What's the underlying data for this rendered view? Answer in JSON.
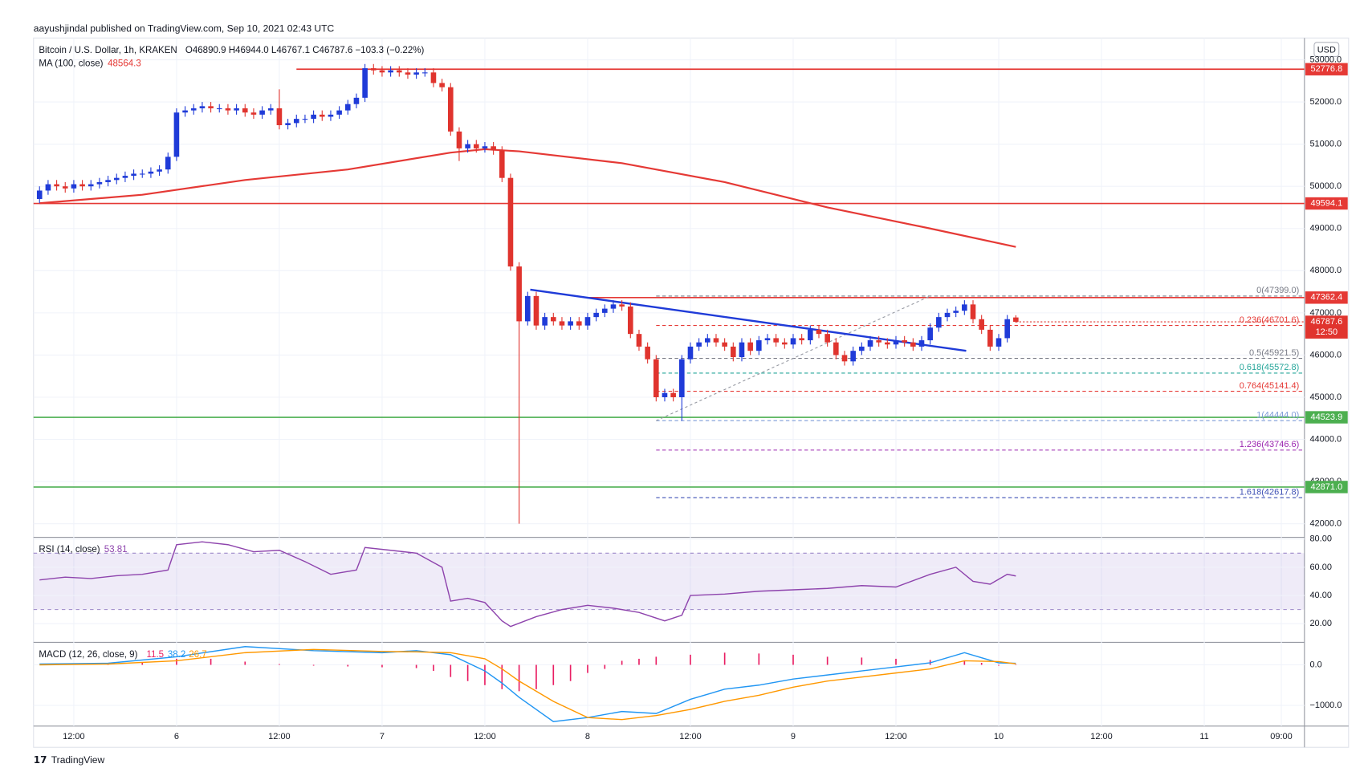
{
  "header": {
    "byline": "aayushjindal published on TradingView.com, Sep 10, 2021 02:43 UTC",
    "symbol": "Bitcoin / U.S. Dollar, 1h, KRAKEN",
    "ohlc": "O46890.9 H46944.0 L46767.1 C46787.6 −103.3 (−0.22%)",
    "currency": "USD",
    "countdown": "12:50",
    "logo": "TradingView"
  },
  "chart_data": {
    "type": "candlestick",
    "up_color": "#1f3bd8",
    "down_color": "#e0342e",
    "grid": true,
    "xlim": [
      7.3,
      155.7
    ],
    "xticks": [
      {
        "value": 12,
        "label": "12:00"
      },
      {
        "value": 24,
        "label": "6"
      },
      {
        "value": 36,
        "label": "12:00"
      },
      {
        "value": 48,
        "label": "7"
      },
      {
        "value": 60,
        "label": "12:00"
      },
      {
        "value": 72,
        "label": "8"
      },
      {
        "value": 84,
        "label": "12:00"
      },
      {
        "value": 96,
        "label": "9"
      },
      {
        "value": 108,
        "label": "12:00"
      },
      {
        "value": 120,
        "label": "10"
      },
      {
        "value": 132,
        "label": "12:00"
      },
      {
        "value": 144,
        "label": "11"
      },
      {
        "value": 153,
        "label": "09:00"
      }
    ],
    "ylim": [
      53517,
      41678
    ],
    "yticks": [
      {
        "value": 53000,
        "label": "53000.0"
      },
      {
        "value": 52000,
        "label": "52000.0"
      },
      {
        "value": 51000,
        "label": "51000.0"
      },
      {
        "value": 50000,
        "label": "50000.0"
      },
      {
        "value": 49000,
        "label": "49000.0"
      },
      {
        "value": 48000,
        "label": "48000.0"
      },
      {
        "value": 47000,
        "label": "47000.0"
      },
      {
        "value": 46000,
        "label": "46000.0"
      },
      {
        "value": 45000,
        "label": "45000.0"
      },
      {
        "value": 44000,
        "label": "44000.0"
      },
      {
        "value": 43000,
        "label": "43000.0"
      },
      {
        "value": 42000,
        "label": "42000.0"
      }
    ],
    "x": [
      8,
      9,
      10,
      11,
      12,
      13,
      14,
      15,
      16,
      17,
      18,
      19,
      20,
      21,
      22,
      23,
      24,
      25,
      26,
      27,
      28,
      29,
      30,
      31,
      32,
      33,
      34,
      35,
      36,
      37,
      38,
      39,
      40,
      41,
      42,
      43,
      44,
      45,
      46,
      47,
      48,
      49,
      50,
      51,
      52,
      53,
      54,
      55,
      56,
      57,
      58,
      59,
      60,
      61,
      62,
      63,
      64,
      65,
      66,
      67,
      68,
      69,
      70,
      71,
      72,
      73,
      74,
      75,
      76,
      77,
      78,
      79,
      80,
      81,
      82,
      83,
      84,
      85,
      86,
      87,
      88,
      89,
      90,
      91,
      92,
      93,
      94,
      95,
      96,
      97,
      98,
      99,
      100,
      101,
      102,
      103,
      104,
      105,
      106,
      107,
      108,
      109,
      110,
      111,
      112,
      113,
      114,
      115,
      116,
      117,
      118,
      119,
      120,
      121,
      122
    ],
    "open": [
      49700,
      49900,
      50050,
      50000,
      49950,
      50050,
      50000,
      50050,
      50100,
      50150,
      50200,
      50250,
      50300,
      50300,
      50350,
      50400,
      50700,
      51750,
      51800,
      51850,
      51900,
      51850,
      51850,
      51800,
      51850,
      51750,
      51700,
      51800,
      51850,
      51450,
      51500,
      51600,
      51600,
      51700,
      51650,
      51700,
      51800,
      51950,
      52100,
      52800,
      52750,
      52700,
      52750,
      52700,
      52650,
      52700,
      52700,
      52450,
      52350,
      51300,
      50900,
      51000,
      50900,
      50950,
      50850,
      50200,
      48100,
      46800,
      47400,
      46700,
      46900,
      46800,
      46700,
      46800,
      46700,
      46900,
      47000,
      47100,
      47200,
      47150,
      46500,
      46200,
      45900,
      45000,
      45100,
      45000,
      45900,
      46200,
      46300,
      46400,
      46300,
      46200,
      45950,
      46300,
      46100,
      46350,
      46400,
      46300,
      46250,
      46400,
      46350,
      46600,
      46500,
      46300,
      46000,
      45850,
      46100,
      46200,
      46350,
      46300,
      46250,
      46350,
      46300,
      46200,
      46350,
      46650,
      46900,
      47000,
      47050,
      47200,
      46850,
      46600,
      46200,
      46400,
      46890.9
    ],
    "high": [
      50000,
      50150,
      50150,
      50100,
      50150,
      50150,
      50150,
      50200,
      50250,
      50300,
      50350,
      50400,
      50400,
      50450,
      50500,
      50800,
      51850,
      51900,
      51950,
      52000,
      52000,
      51950,
      51950,
      51950,
      51950,
      51850,
      51900,
      51950,
      52300,
      51600,
      51700,
      51700,
      51800,
      51800,
      51800,
      51900,
      52050,
      52200,
      52900,
      52900,
      52850,
      52850,
      52850,
      52800,
      52800,
      52800,
      52800,
      52550,
      52450,
      51400,
      51100,
      51100,
      51050,
      51050,
      50950,
      50300,
      48200,
      47500,
      47500,
      47000,
      47000,
      46900,
      46900,
      46900,
      47000,
      47100,
      47200,
      47300,
      47300,
      47250,
      46600,
      46300,
      46000,
      45200,
      45200,
      46000,
      46300,
      46400,
      46500,
      46500,
      46400,
      46300,
      46400,
      46400,
      46450,
      46500,
      46500,
      46400,
      46500,
      46500,
      46700,
      46700,
      46600,
      46400,
      46100,
      46200,
      46300,
      46450,
      46450,
      46400,
      46450,
      46450,
      46400,
      46450,
      46750,
      47000,
      47100,
      47150,
      47300,
      47300,
      46950,
      46700,
      46500,
      46950,
      46944
    ],
    "low": [
      49600,
      49800,
      49900,
      49850,
      49850,
      49900,
      49900,
      49950,
      50000,
      50050,
      50100,
      50150,
      50200,
      50200,
      50250,
      50300,
      50600,
      51650,
      51700,
      51750,
      51750,
      51750,
      51700,
      51700,
      51650,
      51600,
      51600,
      51700,
      51350,
      51350,
      51400,
      51500,
      51500,
      51550,
      51550,
      51600,
      51700,
      51850,
      52000,
      52650,
      52600,
      52600,
      52600,
      52550,
      52550,
      52600,
      52350,
      52250,
      51200,
      50600,
      50800,
      50800,
      50800,
      50750,
      50100,
      48000,
      42000,
      46700,
      46600,
      46600,
      46700,
      46600,
      46600,
      46600,
      46600,
      46800,
      46900,
      47000,
      47050,
      46400,
      46100,
      45800,
      44900,
      44900,
      44900,
      44444,
      45800,
      46100,
      46200,
      46200,
      46100,
      45850,
      45850,
      46000,
      46000,
      46250,
      46200,
      46150,
      46150,
      46250,
      46250,
      46400,
      46200,
      45900,
      45750,
      45750,
      46000,
      46100,
      46200,
      46150,
      46150,
      46200,
      46100,
      46100,
      46250,
      46550,
      46800,
      46900,
      46950,
      46750,
      46500,
      46100,
      46100,
      46300,
      46767.1
    ],
    "close": [
      49900,
      50050,
      50000,
      49950,
      50050,
      50000,
      50050,
      50100,
      50150,
      50200,
      50250,
      50300,
      50300,
      50350,
      50400,
      50700,
      51750,
      51800,
      51850,
      51900,
      51850,
      51850,
      51800,
      51850,
      51750,
      51700,
      51800,
      51850,
      51450,
      51500,
      51600,
      51600,
      51700,
      51650,
      51700,
      51800,
      51950,
      52100,
      52800,
      52750,
      52700,
      52750,
      52700,
      52650,
      52700,
      52700,
      52450,
      52350,
      51300,
      50900,
      51000,
      50900,
      50950,
      50850,
      50200,
      48100,
      46800,
      47400,
      46700,
      46900,
      46800,
      46700,
      46800,
      46700,
      46900,
      47000,
      47100,
      47200,
      47150,
      46500,
      46200,
      45900,
      45000,
      45100,
      45000,
      45900,
      46200,
      46300,
      46400,
      46300,
      46200,
      45950,
      46300,
      46100,
      46350,
      46400,
      46300,
      46250,
      46400,
      46350,
      46600,
      46500,
      46300,
      46000,
      45850,
      46100,
      46200,
      46350,
      46300,
      46250,
      46350,
      46300,
      46200,
      46350,
      46650,
      46900,
      47000,
      47050,
      47200,
      46850,
      46600,
      46200,
      46400,
      46850,
      46787.6
    ],
    "ma": {
      "name": "MA (100, close)",
      "color": "#e53935",
      "x": [
        8,
        20,
        32,
        44,
        56,
        60,
        64,
        76,
        88,
        100,
        112,
        122
      ],
      "values": [
        49600,
        49800,
        50150,
        50400,
        50800,
        50880,
        50830,
        50550,
        50100,
        49500,
        49000,
        48564.3
      ]
    },
    "levels": [
      {
        "value": 52776.8,
        "label": "52776.8",
        "color": "#e53935",
        "from": 38
      },
      {
        "value": 49594.1,
        "label": "49594.1",
        "color": "#e53935",
        "from": 7.3
      },
      {
        "value": 47362.4,
        "label": "47362.4",
        "color": "#e53935",
        "from": 72
      },
      {
        "value": 44523.9,
        "label": "44523.9",
        "color": "#4caf50",
        "from": 7.3
      },
      {
        "value": 42871.0,
        "label": "42871.0",
        "color": "#4caf50",
        "from": 7.3
      }
    ],
    "fib": {
      "from": 80,
      "to": 112,
      "levels": [
        {
          "value": 47399.0,
          "label": "0(47399.0)",
          "color": "#787b86"
        },
        {
          "value": 46701.6,
          "label": "0.236(46701.6)",
          "color": "#e53935"
        },
        {
          "value": 45921.5,
          "label": "0.5(45921.5)",
          "color": "#787b86"
        },
        {
          "value": 45572.8,
          "label": "0.618(45572.8)",
          "color": "#26a69a"
        },
        {
          "value": 45141.4,
          "label": "0.764(45141.4)",
          "color": "#e53935"
        },
        {
          "value": 44444.0,
          "label": "1(44444.0)",
          "color": "#7e9cd8"
        },
        {
          "value": 43746.6,
          "label": "1.236(43746.6)",
          "color": "#9c27b0"
        },
        {
          "value": 42617.8,
          "label": "1.618(42617.8)",
          "color": "#3f51b5"
        }
      ]
    },
    "trendline": {
      "color": "#1f3bd8",
      "x": [
        65.3,
        116.2
      ],
      "values": [
        47550,
        46100
      ]
    },
    "rsi": {
      "name": "RSI (14, close)",
      "color": "#8e44ad",
      "ylim": [
        81.2,
        6.8
      ],
      "band": [
        30,
        70
      ],
      "yticks": [
        {
          "value": 80,
          "label": "80.00"
        },
        {
          "value": 60,
          "label": "60.00"
        },
        {
          "value": 40,
          "label": "40.00"
        },
        {
          "value": 20,
          "label": "20.00"
        }
      ],
      "x": [
        8,
        11,
        14,
        17,
        20,
        23,
        24,
        27,
        30,
        33,
        36,
        39,
        42,
        45,
        46,
        49,
        52,
        55,
        56,
        58,
        60,
        62,
        63,
        66,
        69,
        72,
        75,
        78,
        81,
        83,
        84,
        88,
        92,
        96,
        100,
        104,
        108,
        112,
        115,
        117,
        119,
        121,
        122
      ],
      "values": [
        51,
        53,
        52,
        54,
        55,
        58,
        76,
        78,
        76,
        71,
        72,
        64,
        55,
        58,
        74,
        72,
        70,
        60,
        36,
        38,
        35,
        22,
        18,
        25,
        30,
        33,
        31,
        28,
        22,
        26,
        40,
        41,
        43,
        44,
        45,
        47,
        46,
        55,
        60,
        50,
        48,
        55,
        53.81
      ]
    },
    "macd": {
      "name": "MACD (12, 26, close, 9)",
      "ylim": [
        556,
        -1511
      ],
      "yticks": [
        {
          "value": 0,
          "label": "0.0"
        },
        {
          "value": -1000,
          "label": "−1000.0"
        }
      ],
      "histogram": {
        "color": "#e91e63",
        "x": [
          16,
          20,
          24,
          28,
          32,
          36,
          40,
          44,
          48,
          52,
          54,
          56,
          58,
          60,
          62,
          64,
          66,
          68,
          70,
          72,
          74,
          76,
          78,
          80,
          84,
          88,
          92,
          96,
          100,
          104,
          108,
          112,
          116,
          118,
          120,
          122
        ],
        "values": [
          30,
          60,
          150,
          150,
          80,
          20,
          -20,
          -40,
          -60,
          -80,
          -150,
          -300,
          -400,
          -500,
          -600,
          -650,
          -600,
          -500,
          -400,
          -200,
          -100,
          100,
          150,
          200,
          250,
          300,
          280,
          250,
          200,
          180,
          150,
          120,
          100,
          50,
          -20,
          11.5
        ]
      },
      "series": [
        {
          "name": "MACD",
          "color": "#2196f3",
          "x": [
            8,
            16,
            24,
            32,
            40,
            48,
            52,
            56,
            60,
            62,
            64,
            68,
            72,
            76,
            80,
            84,
            88,
            92,
            96,
            100,
            104,
            108,
            112,
            116,
            120,
            122
          ],
          "values": [
            20,
            40,
            200,
            450,
            350,
            300,
            350,
            250,
            -150,
            -450,
            -800,
            -1400,
            -1300,
            -1150,
            -1200,
            -850,
            -600,
            -500,
            -350,
            -250,
            -150,
            -50,
            50,
            300,
            50,
            38.2
          ]
        },
        {
          "name": "Signal",
          "color": "#ff9800",
          "x": [
            8,
            16,
            24,
            32,
            40,
            48,
            52,
            56,
            60,
            62,
            64,
            68,
            72,
            76,
            80,
            84,
            88,
            92,
            96,
            100,
            104,
            108,
            112,
            116,
            120,
            122
          ],
          "values": [
            0,
            20,
            100,
            300,
            380,
            330,
            320,
            300,
            150,
            -100,
            -400,
            -900,
            -1300,
            -1350,
            -1250,
            -1100,
            -900,
            -750,
            -550,
            -400,
            -300,
            -200,
            -100,
            100,
            80,
            26.7
          ]
        }
      ]
    }
  }
}
